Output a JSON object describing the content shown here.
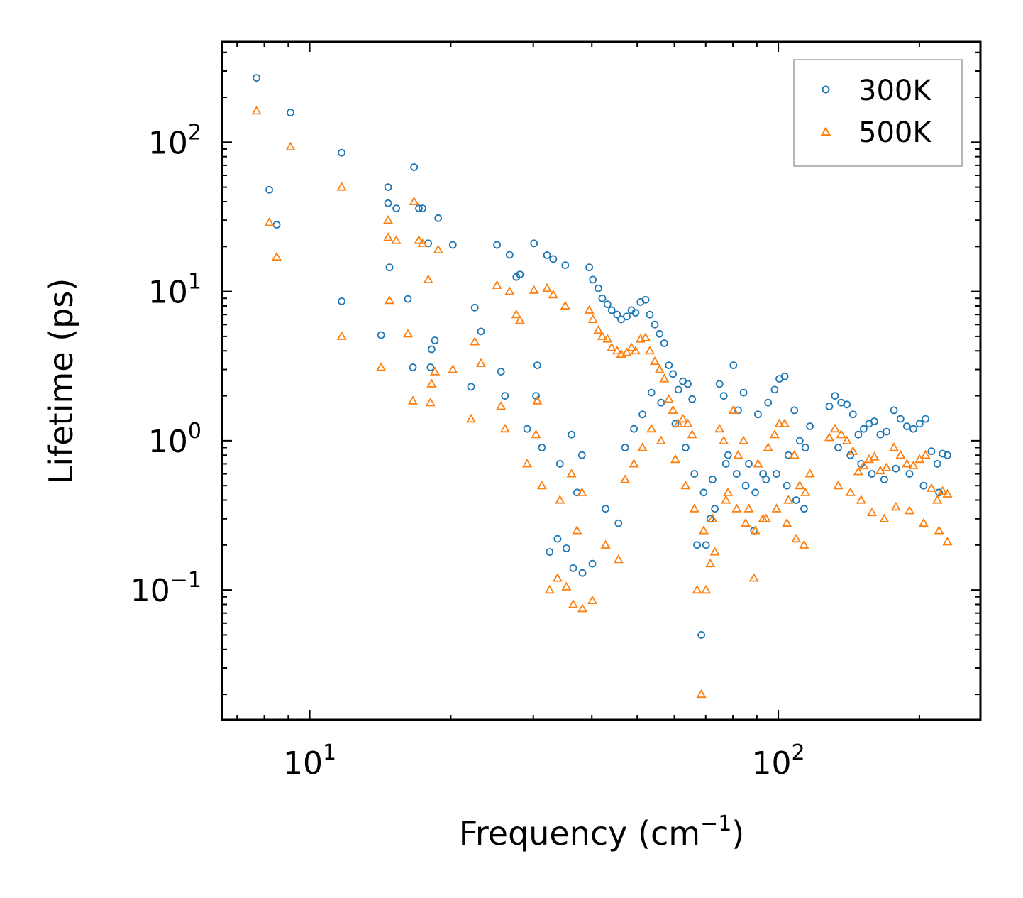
{
  "chart_data": {
    "type": "scatter",
    "title": "",
    "xlabel": "Frequency (cm",
    "xlabel_sup": "−1",
    "xlabel_suffix": ")",
    "ylabel": "Lifetime (ps)",
    "xscale": "log",
    "yscale": "log",
    "xlim": [
      6.5,
      270
    ],
    "ylim": [
      0.0135,
      470
    ],
    "x_major_ticks": [
      {
        "value": 10,
        "base": "10",
        "exp": "1"
      },
      {
        "value": 100,
        "base": "10",
        "exp": "2"
      }
    ],
    "y_major_ticks": [
      {
        "value": 0.1,
        "base": "10",
        "exp": "−1"
      },
      {
        "value": 1,
        "base": "10",
        "exp": "0"
      },
      {
        "value": 10,
        "base": "10",
        "exp": "1"
      },
      {
        "value": 100,
        "base": "10",
        "exp": "2"
      }
    ],
    "legend_position": "top-right",
    "series": [
      {
        "name": "300K",
        "marker": "circle",
        "color": "#1f77b4",
        "points": [
          [
            7.7,
            270
          ],
          [
            8.2,
            48
          ],
          [
            8.5,
            28
          ],
          [
            9.1,
            158
          ],
          [
            11.7,
            85
          ],
          [
            11.7,
            8.6
          ],
          [
            14.2,
            5.1
          ],
          [
            14.7,
            50
          ],
          [
            14.7,
            39
          ],
          [
            14.8,
            14.5
          ],
          [
            15.3,
            36
          ],
          [
            16.2,
            8.9
          ],
          [
            16.7,
            68
          ],
          [
            16.6,
            3.1
          ],
          [
            17.1,
            36
          ],
          [
            17.4,
            36
          ],
          [
            17.9,
            21
          ],
          [
            18.2,
            4.1
          ],
          [
            18.1,
            3.1
          ],
          [
            18.5,
            4.7
          ],
          [
            18.8,
            31
          ],
          [
            20.2,
            20.5
          ],
          [
            22.1,
            2.3
          ],
          [
            22.5,
            7.8
          ],
          [
            23.2,
            5.4
          ],
          [
            25.1,
            20.5
          ],
          [
            25.6,
            2.9
          ],
          [
            26.1,
            2.0
          ],
          [
            26.7,
            17.6
          ],
          [
            27.6,
            12.5
          ],
          [
            28.1,
            13
          ],
          [
            29.1,
            1.2
          ],
          [
            30.1,
            21
          ],
          [
            30.4,
            2.0
          ],
          [
            30.6,
            3.2
          ],
          [
            31.3,
            0.9
          ],
          [
            32.1,
            17.5
          ],
          [
            33.1,
            16.5
          ],
          [
            34.2,
            0.7
          ],
          [
            35.1,
            15
          ],
          [
            36.2,
            1.1
          ],
          [
            37.2,
            0.45
          ],
          [
            38.1,
            0.8
          ],
          [
            39.5,
            14.5
          ],
          [
            40.2,
            12
          ],
          [
            41.3,
            10.5
          ],
          [
            42.1,
            9.0
          ],
          [
            43.2,
            8.2
          ],
          [
            44.1,
            7.5
          ],
          [
            45.3,
            7.0
          ],
          [
            46.2,
            6.5
          ],
          [
            47.5,
            6.8
          ],
          [
            48.6,
            7.5
          ],
          [
            49.6,
            7.2
          ],
          [
            50.8,
            8.5
          ],
          [
            52.1,
            8.8
          ],
          [
            53.2,
            7.0
          ],
          [
            54.5,
            6.0
          ],
          [
            55.8,
            5.2
          ],
          [
            57.1,
            4.5
          ],
          [
            58.4,
            3.2
          ],
          [
            59.6,
            2.8
          ],
          [
            61.2,
            2.2
          ],
          [
            62.6,
            2.5
          ],
          [
            64.1,
            2.4
          ],
          [
            65.5,
            1.9
          ],
          [
            67.1,
            0.2
          ],
          [
            68.5,
            0.05
          ],
          [
            70.1,
            0.2
          ],
          [
            71.6,
            0.3
          ],
          [
            73.2,
            0.35
          ],
          [
            74.9,
            2.4
          ],
          [
            76.5,
            2.0
          ],
          [
            78.1,
            0.8
          ],
          [
            80.2,
            3.2
          ],
          [
            82.1,
            1.6
          ],
          [
            84.3,
            2.1
          ],
          [
            86.5,
            0.7
          ],
          [
            88.7,
            0.25
          ],
          [
            90.5,
            1.5
          ],
          [
            92.8,
            0.6
          ],
          [
            95.1,
            1.8
          ],
          [
            98.2,
            2.2
          ],
          [
            100.5,
            2.6
          ],
          [
            103.2,
            2.7
          ],
          [
            105.1,
            0.8
          ],
          [
            108.2,
            1.6
          ],
          [
            111.1,
            1.0
          ],
          [
            114.2,
            0.9
          ],
          [
            116.8,
            1.25
          ],
          [
            128.5,
            1.7
          ],
          [
            132.1,
            2.0
          ],
          [
            136.2,
            1.8
          ],
          [
            140.1,
            1.75
          ],
          [
            144.3,
            1.5
          ],
          [
            148.2,
            1.1
          ],
          [
            152.1,
            1.2
          ],
          [
            156.2,
            1.3
          ],
          [
            160.3,
            1.35
          ],
          [
            165.1,
            1.1
          ],
          [
            170.2,
            1.15
          ],
          [
            176.5,
            1.6
          ],
          [
            182.3,
            1.4
          ],
          [
            188.1,
            1.25
          ],
          [
            194.2,
            1.2
          ],
          [
            200.3,
            1.3
          ],
          [
            206.1,
            1.4
          ],
          [
            212.2,
            0.85
          ],
          [
            218.4,
            0.7
          ],
          [
            224.1,
            0.82
          ],
          [
            229.5,
            0.8
          ],
          [
            36.5,
            0.14
          ],
          [
            38.2,
            0.13
          ],
          [
            40.1,
            0.15
          ],
          [
            32.5,
            0.18
          ],
          [
            33.8,
            0.22
          ],
          [
            35.3,
            0.19
          ],
          [
            42.8,
            0.35
          ],
          [
            45.6,
            0.28
          ],
          [
            47.1,
            0.9
          ],
          [
            49.2,
            1.2
          ],
          [
            51.3,
            1.5
          ],
          [
            53.6,
            2.1
          ],
          [
            56.2,
            1.8
          ],
          [
            60.3,
            1.3
          ],
          [
            63.4,
            0.9
          ],
          [
            66.2,
            0.6
          ],
          [
            69.3,
            0.45
          ],
          [
            72.4,
            0.55
          ],
          [
            77.3,
            0.7
          ],
          [
            81.5,
            0.6
          ],
          [
            85.2,
            0.5
          ],
          [
            89.3,
            0.45
          ],
          [
            94.2,
            0.55
          ],
          [
            99.1,
            0.6
          ],
          [
            104.3,
            0.5
          ],
          [
            109.2,
            0.4
          ],
          [
            113.5,
            0.35
          ],
          [
            134.2,
            0.9
          ],
          [
            142.5,
            0.8
          ],
          [
            150.2,
            0.7
          ],
          [
            158.4,
            0.6
          ],
          [
            168.3,
            0.55
          ],
          [
            178.2,
            0.65
          ],
          [
            190.5,
            0.6
          ],
          [
            204.2,
            0.5
          ],
          [
            220.3,
            0.45
          ]
        ]
      },
      {
        "name": "500K",
        "marker": "triangle",
        "color": "#ff7f0e",
        "points": [
          [
            7.7,
            162
          ],
          [
            8.2,
            29
          ],
          [
            8.5,
            17
          ],
          [
            9.1,
            93
          ],
          [
            11.7,
            50
          ],
          [
            11.7,
            5.0
          ],
          [
            14.2,
            3.1
          ],
          [
            14.7,
            23
          ],
          [
            14.7,
            30
          ],
          [
            14.8,
            8.7
          ],
          [
            15.3,
            22
          ],
          [
            16.2,
            5.2
          ],
          [
            16.7,
            40
          ],
          [
            16.6,
            1.85
          ],
          [
            17.1,
            22
          ],
          [
            17.4,
            21
          ],
          [
            17.9,
            12
          ],
          [
            18.2,
            2.4
          ],
          [
            18.1,
            1.8
          ],
          [
            18.5,
            2.9
          ],
          [
            18.8,
            19
          ],
          [
            20.2,
            3.0
          ],
          [
            22.1,
            1.4
          ],
          [
            22.5,
            4.6
          ],
          [
            23.2,
            3.3
          ],
          [
            25.1,
            11
          ],
          [
            25.6,
            1.7
          ],
          [
            26.1,
            1.2
          ],
          [
            26.7,
            10
          ],
          [
            27.6,
            7.0
          ],
          [
            28.1,
            6.4
          ],
          [
            29.1,
            0.7
          ],
          [
            30.1,
            10.2
          ],
          [
            30.4,
            1.1
          ],
          [
            30.6,
            1.85
          ],
          [
            31.3,
            0.5
          ],
          [
            32.1,
            10.5
          ],
          [
            33.1,
            9.5
          ],
          [
            34.2,
            0.4
          ],
          [
            35.1,
            8.0
          ],
          [
            36.2,
            0.6
          ],
          [
            37.2,
            0.25
          ],
          [
            38.1,
            0.45
          ],
          [
            39.5,
            7.5
          ],
          [
            40.2,
            6.5
          ],
          [
            41.3,
            5.5
          ],
          [
            42.1,
            5.0
          ],
          [
            43.2,
            4.8
          ],
          [
            44.1,
            4.2
          ],
          [
            45.3,
            4.0
          ],
          [
            46.2,
            3.8
          ],
          [
            47.5,
            3.9
          ],
          [
            48.6,
            4.2
          ],
          [
            49.6,
            4.0
          ],
          [
            50.8,
            4.8
          ],
          [
            52.1,
            4.9
          ],
          [
            53.2,
            4.0
          ],
          [
            54.5,
            3.4
          ],
          [
            55.8,
            3.0
          ],
          [
            57.1,
            2.6
          ],
          [
            58.4,
            1.9
          ],
          [
            59.6,
            1.6
          ],
          [
            61.2,
            1.3
          ],
          [
            62.6,
            1.4
          ],
          [
            64.1,
            1.3
          ],
          [
            65.5,
            1.1
          ],
          [
            67.1,
            0.1
          ],
          [
            68.5,
            0.02
          ],
          [
            70.1,
            0.1
          ],
          [
            71.6,
            0.15
          ],
          [
            73.2,
            0.18
          ],
          [
            74.9,
            1.2
          ],
          [
            76.5,
            1.0
          ],
          [
            78.1,
            0.45
          ],
          [
            80.2,
            1.6
          ],
          [
            82.1,
            0.8
          ],
          [
            84.3,
            1.0
          ],
          [
            86.5,
            0.35
          ],
          [
            88.7,
            0.12
          ],
          [
            90.5,
            0.7
          ],
          [
            92.8,
            0.3
          ],
          [
            95.1,
            0.9
          ],
          [
            98.2,
            1.1
          ],
          [
            100.5,
            1.3
          ],
          [
            103.2,
            1.3
          ],
          [
            105.1,
            0.4
          ],
          [
            108.2,
            0.8
          ],
          [
            111.1,
            0.5
          ],
          [
            114.2,
            0.45
          ],
          [
            116.8,
            0.6
          ],
          [
            128.5,
            1.05
          ],
          [
            132.1,
            1.2
          ],
          [
            136.2,
            1.1
          ],
          [
            140.1,
            1.0
          ],
          [
            144.3,
            0.85
          ],
          [
            148.2,
            0.62
          ],
          [
            152.1,
            0.68
          ],
          [
            156.2,
            0.75
          ],
          [
            160.3,
            0.78
          ],
          [
            165.1,
            0.63
          ],
          [
            170.2,
            0.66
          ],
          [
            176.5,
            0.9
          ],
          [
            182.3,
            0.8
          ],
          [
            188.1,
            0.7
          ],
          [
            194.2,
            0.68
          ],
          [
            200.3,
            0.75
          ],
          [
            206.1,
            0.8
          ],
          [
            212.2,
            0.48
          ],
          [
            218.4,
            0.4
          ],
          [
            224.1,
            0.46
          ],
          [
            229.5,
            0.44
          ],
          [
            36.5,
            0.08
          ],
          [
            38.2,
            0.075
          ],
          [
            40.1,
            0.085
          ],
          [
            32.5,
            0.1
          ],
          [
            33.8,
            0.12
          ],
          [
            35.3,
            0.105
          ],
          [
            42.8,
            0.2
          ],
          [
            45.6,
            0.16
          ],
          [
            47.1,
            0.55
          ],
          [
            49.2,
            0.7
          ],
          [
            51.3,
            0.9
          ],
          [
            53.6,
            1.2
          ],
          [
            56.2,
            1.0
          ],
          [
            60.3,
            0.75
          ],
          [
            63.4,
            0.5
          ],
          [
            66.2,
            0.35
          ],
          [
            69.3,
            0.25
          ],
          [
            72.4,
            0.3
          ],
          [
            77.3,
            0.4
          ],
          [
            81.5,
            0.35
          ],
          [
            85.2,
            0.28
          ],
          [
            89.3,
            0.25
          ],
          [
            94.2,
            0.3
          ],
          [
            99.1,
            0.35
          ],
          [
            104.3,
            0.28
          ],
          [
            109.2,
            0.22
          ],
          [
            113.5,
            0.2
          ],
          [
            134.2,
            0.5
          ],
          [
            142.5,
            0.45
          ],
          [
            150.2,
            0.4
          ],
          [
            158.4,
            0.33
          ],
          [
            168.3,
            0.3
          ],
          [
            178.2,
            0.36
          ],
          [
            190.5,
            0.34
          ],
          [
            204.2,
            0.28
          ],
          [
            220.3,
            0.25
          ],
          [
            229.5,
            0.21
          ]
        ]
      }
    ]
  }
}
